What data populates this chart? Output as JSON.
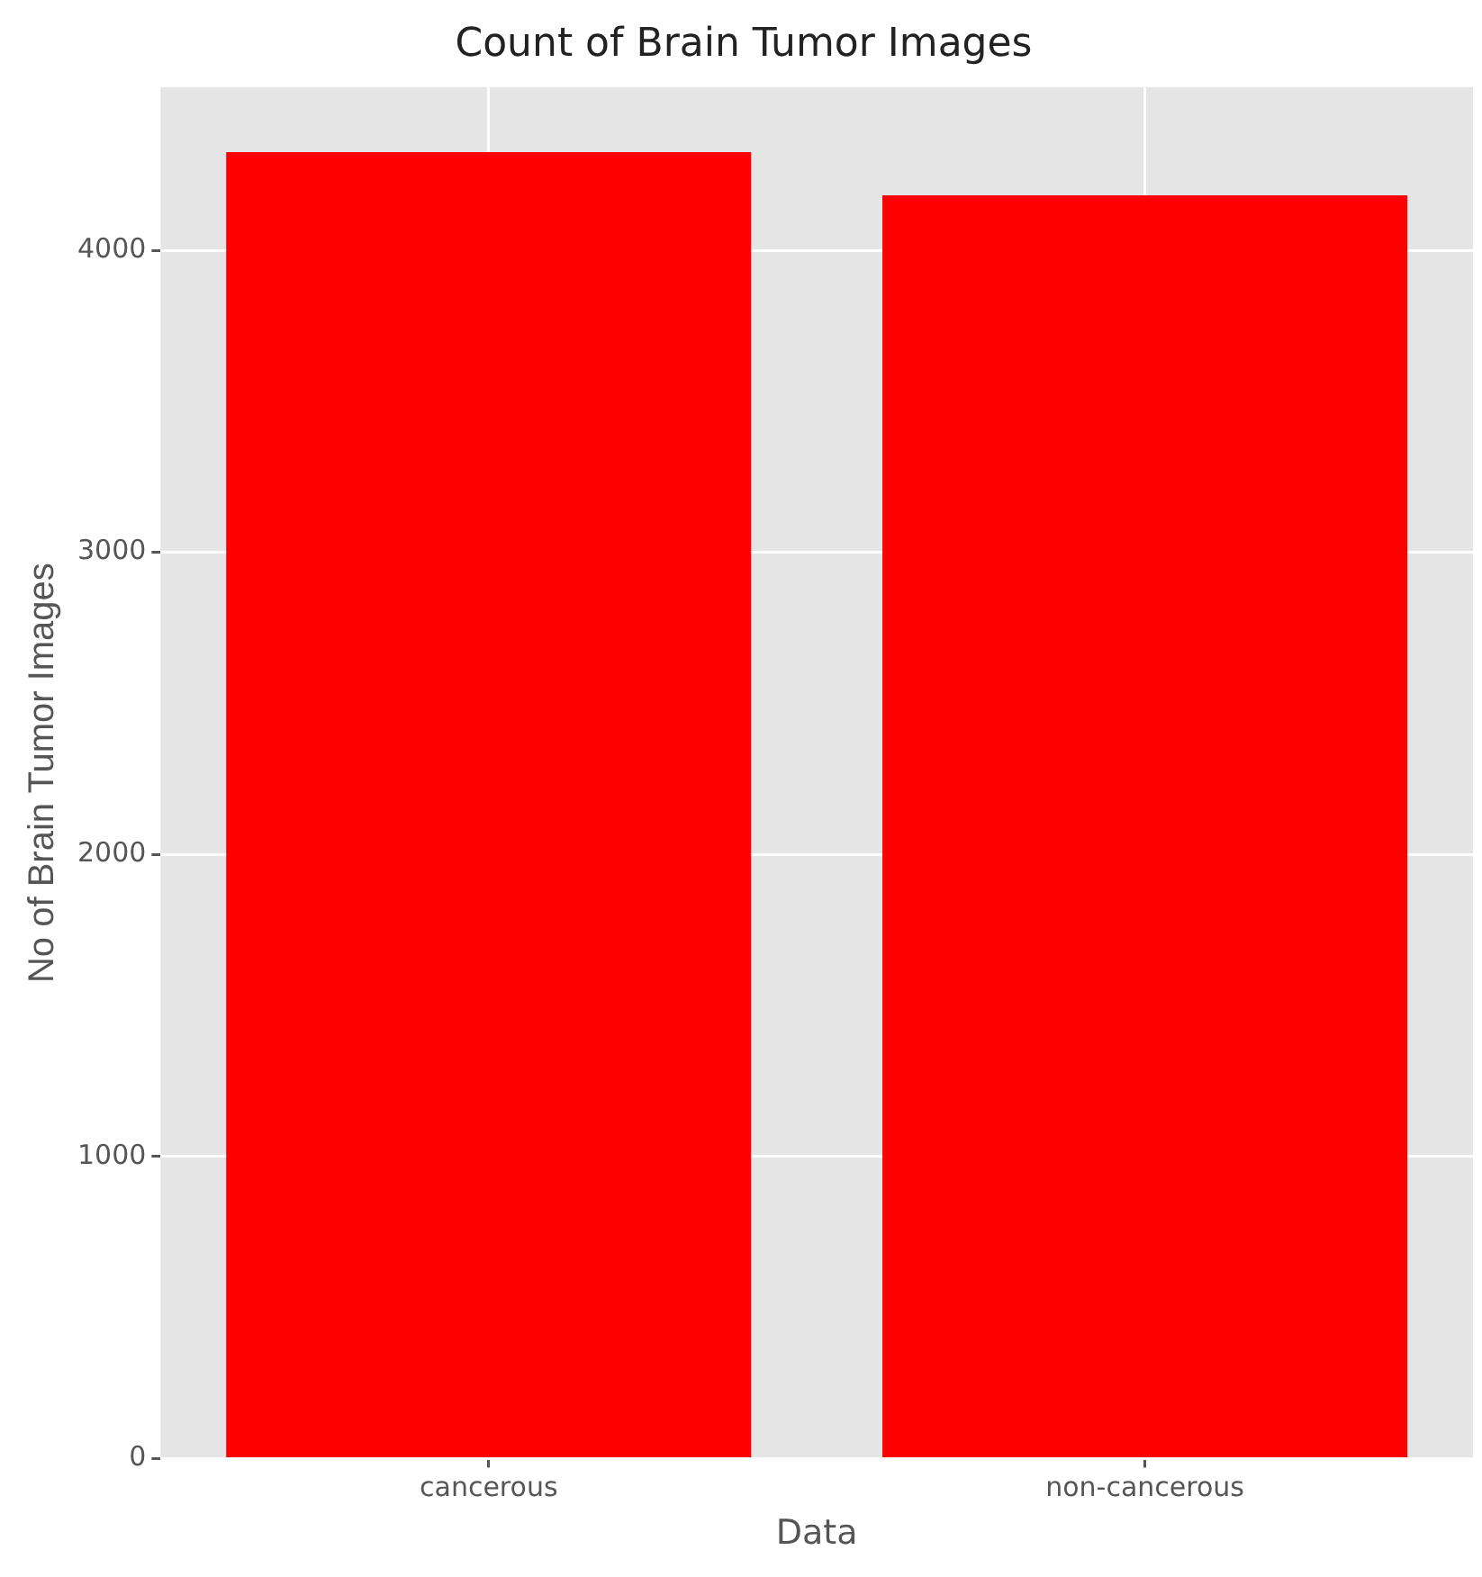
{
  "chart_data": {
    "type": "bar",
    "title": "Count of Brain Tumor Images",
    "xlabel": "Data",
    "ylabel": "No of Brain Tumor Images",
    "categories": [
      "cancerous",
      "non-cancerous"
    ],
    "values": [
      4325,
      4182
    ],
    "color": "#ff0000",
    "ylim": [
      0,
      4540
    ],
    "yticks": [
      0,
      1000,
      2000,
      3000,
      4000
    ],
    "grid": true
  }
}
